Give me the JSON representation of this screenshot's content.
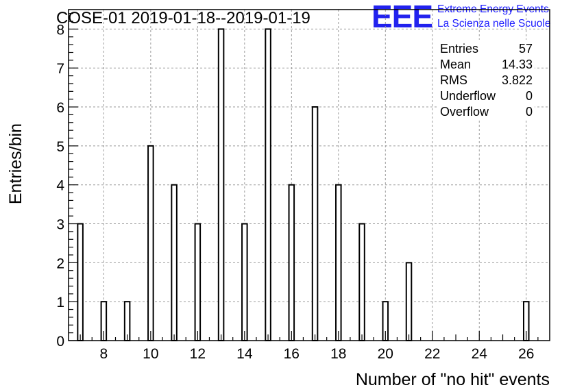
{
  "chart_data": {
    "type": "bar",
    "title": "COSE-01 2019-01-18--2019-01-19",
    "xlabel": "Number of \"no hit\" events",
    "ylabel": "Entries/bin",
    "xlim": [
      6.5,
      27
    ],
    "ylim": [
      0,
      8.5
    ],
    "x_ticks": [
      8,
      10,
      12,
      14,
      16,
      18,
      20,
      22,
      24,
      26
    ],
    "y_ticks": [
      0,
      1,
      2,
      3,
      4,
      5,
      6,
      7,
      8
    ],
    "grid": true,
    "x": [
      7,
      8,
      9,
      10,
      11,
      12,
      13,
      14,
      15,
      16,
      17,
      18,
      19,
      20,
      21,
      26
    ],
    "values": [
      3,
      1,
      1,
      5,
      4,
      3,
      8,
      3,
      8,
      4,
      6,
      4,
      3,
      1,
      2,
      1
    ],
    "stats": {
      "entries_label": "Entries",
      "entries": "57",
      "mean_label": "Mean",
      "mean": "14.33",
      "rms_label": "RMS",
      "rms": "3.822",
      "underflow_label": "Underflow",
      "underflow": "0",
      "overflow_label": "Overflow",
      "overflow": "0"
    }
  },
  "logo": {
    "mark": "EEE",
    "line1": "Extreme Energy Events",
    "line2": "La Scienza nelle Scuole",
    "color": "#1a1aff"
  }
}
